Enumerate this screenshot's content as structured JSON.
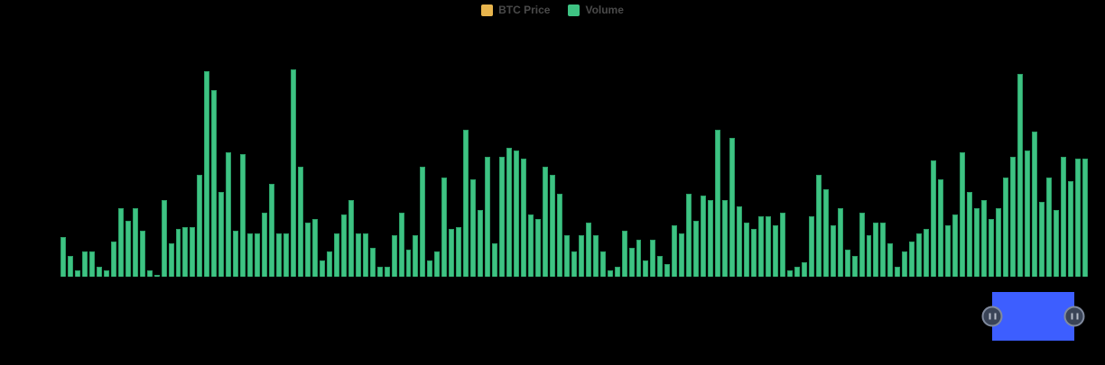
{
  "legend": {
    "items": [
      {
        "label": "BTC Price",
        "color": "#e8b54d"
      },
      {
        "label": "Volume",
        "color": "#3ec383"
      }
    ]
  },
  "chart_data": {
    "type": "bar",
    "title": "",
    "xlabel": "",
    "ylabel": "",
    "legend": [
      "BTC Price",
      "Volume"
    ],
    "legend_position": "top-center",
    "grid": false,
    "axes_visible": false,
    "background": "#000000",
    "y_scale": "relative bar height, percent of tallest bar (no axis labels visible)",
    "series": [
      {
        "name": "BTC Price",
        "type": "line",
        "color": "#e8b54d",
        "values": [],
        "note": "present in legend only; no data visible against black background"
      },
      {
        "name": "Volume",
        "type": "bar",
        "color": "#3ec383",
        "values": [
          19,
          10,
          3,
          12,
          12,
          5,
          3,
          17,
          33,
          27,
          33,
          22,
          3,
          1,
          37,
          16,
          23,
          24,
          24,
          49,
          99,
          90,
          41,
          60,
          22,
          59,
          21,
          21,
          31,
          45,
          21,
          21,
          100,
          53,
          26,
          28,
          8,
          12,
          21,
          30,
          37,
          21,
          21,
          14,
          5,
          5,
          20,
          31,
          13,
          20,
          53,
          8,
          12,
          48,
          23,
          24,
          71,
          47,
          32,
          58,
          16,
          58,
          62,
          61,
          57,
          30,
          28,
          53,
          49,
          40,
          20,
          12,
          20,
          26,
          20,
          12,
          3,
          5,
          22,
          14,
          18,
          8,
          18,
          10,
          6,
          25,
          21,
          40,
          27,
          39,
          37,
          71,
          37,
          67,
          34,
          26,
          23,
          29,
          29,
          25,
          31,
          3,
          5,
          7,
          29,
          49,
          42,
          25,
          33,
          13,
          10,
          31,
          20,
          26,
          26,
          16,
          5,
          12,
          17,
          21,
          23,
          56,
          47,
          25,
          30,
          60,
          41,
          33,
          37,
          28,
          33,
          48,
          58,
          98,
          61,
          70,
          36,
          48,
          32,
          58,
          46,
          57,
          57
        ]
      }
    ]
  },
  "datazoom": {
    "window_color": "#3d5eff",
    "handle_style": "circle with pause grip",
    "handle_fill": "#3a4457",
    "handle_border": "#808a9e"
  }
}
